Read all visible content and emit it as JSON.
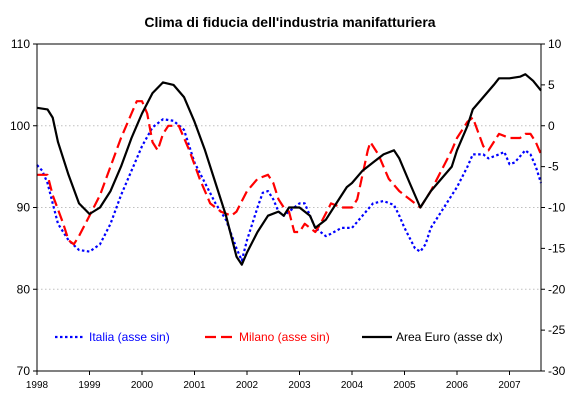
{
  "chart_data": {
    "type": "line",
    "title": "Clima di fiducia dell'industria manifatturiera",
    "x_ticks": [
      "1998",
      "1999",
      "2000",
      "2001",
      "2002",
      "2003",
      "2004",
      "2005",
      "2006",
      "2007"
    ],
    "x_range": [
      1998.0,
      2007.6
    ],
    "y_left": {
      "range": [
        70,
        110
      ],
      "ticks": [
        70,
        80,
        90,
        100,
        110
      ]
    },
    "y_right": {
      "range": [
        -30,
        10
      ],
      "ticks": [
        -30,
        -25,
        -20,
        -15,
        -10,
        -5,
        0,
        5,
        10
      ]
    },
    "grid": true,
    "legend_position": "bottom",
    "series": [
      {
        "name": "Italia (asse sin)",
        "axis": "left",
        "color": "#0000FF",
        "style": "dotted",
        "points": [
          [
            1998.0,
            95.2
          ],
          [
            1998.1,
            94.5
          ],
          [
            1998.2,
            93.0
          ],
          [
            1998.3,
            90.5
          ],
          [
            1998.4,
            88.0
          ],
          [
            1998.6,
            86.0
          ],
          [
            1998.8,
            84.8
          ],
          [
            1999.0,
            84.6
          ],
          [
            1999.2,
            85.5
          ],
          [
            1999.4,
            88.0
          ],
          [
            1999.6,
            91.5
          ],
          [
            1999.8,
            94.5
          ],
          [
            2000.0,
            97.5
          ],
          [
            2000.2,
            99.8
          ],
          [
            2000.4,
            100.8
          ],
          [
            2000.6,
            100.6
          ],
          [
            2000.8,
            99.5
          ],
          [
            2000.9,
            97.5
          ],
          [
            2001.0,
            95.5
          ],
          [
            2001.2,
            93.0
          ],
          [
            2001.4,
            90.5
          ],
          [
            2001.6,
            88.5
          ],
          [
            2001.8,
            85.0
          ],
          [
            2001.9,
            83.5
          ],
          [
            2002.0,
            86.0
          ],
          [
            2002.2,
            90.0
          ],
          [
            2002.3,
            91.8
          ],
          [
            2002.4,
            92.0
          ],
          [
            2002.5,
            91.0
          ],
          [
            2002.6,
            89.5
          ],
          [
            2002.7,
            89.0
          ],
          [
            2002.8,
            89.5
          ],
          [
            2003.0,
            90.5
          ],
          [
            2003.1,
            90.5
          ],
          [
            2003.2,
            89.0
          ],
          [
            2003.3,
            87.5
          ],
          [
            2003.5,
            86.5
          ],
          [
            2003.6,
            86.8
          ],
          [
            2003.8,
            87.5
          ],
          [
            2004.0,
            87.5
          ],
          [
            2004.2,
            89.0
          ],
          [
            2004.4,
            90.5
          ],
          [
            2004.6,
            90.8
          ],
          [
            2004.8,
            90.3
          ],
          [
            2004.9,
            89.0
          ],
          [
            2005.0,
            87.5
          ],
          [
            2005.2,
            85.0
          ],
          [
            2005.3,
            84.6
          ],
          [
            2005.4,
            85.5
          ],
          [
            2005.5,
            87.5
          ],
          [
            2005.7,
            89.5
          ],
          [
            2005.9,
            91.5
          ],
          [
            2006.0,
            92.5
          ],
          [
            2006.2,
            95.0
          ],
          [
            2006.3,
            96.5
          ],
          [
            2006.5,
            96.5
          ],
          [
            2006.6,
            96.0
          ],
          [
            2006.8,
            96.5
          ],
          [
            2006.9,
            96.8
          ],
          [
            2007.0,
            95.3
          ],
          [
            2007.1,
            95.5
          ],
          [
            2007.3,
            97.0
          ],
          [
            2007.4,
            96.5
          ],
          [
            2007.5,
            95.0
          ],
          [
            2007.6,
            93.0
          ]
        ]
      },
      {
        "name": "Milano (asse sin)",
        "axis": "left",
        "color": "#FF0000",
        "style": "dashed",
        "points": [
          [
            1998.0,
            94.0
          ],
          [
            1998.2,
            94.0
          ],
          [
            1998.3,
            91.5
          ],
          [
            1998.5,
            88.0
          ],
          [
            1998.6,
            86.0
          ],
          [
            1998.7,
            85.5
          ],
          [
            1998.8,
            86.5
          ],
          [
            1999.0,
            89.0
          ],
          [
            1999.2,
            91.5
          ],
          [
            1999.4,
            95.0
          ],
          [
            1999.6,
            98.5
          ],
          [
            1999.8,
            101.5
          ],
          [
            1999.9,
            103.0
          ],
          [
            2000.0,
            103.0
          ],
          [
            2000.1,
            101.5
          ],
          [
            2000.2,
            98.0
          ],
          [
            2000.3,
            97.0
          ],
          [
            2000.4,
            99.0
          ],
          [
            2000.5,
            100.0
          ],
          [
            2000.7,
            100.0
          ],
          [
            2000.9,
            97.0
          ],
          [
            2001.1,
            93.5
          ],
          [
            2001.3,
            90.5
          ],
          [
            2001.5,
            89.5
          ],
          [
            2001.7,
            89.0
          ],
          [
            2001.8,
            89.5
          ],
          [
            2002.0,
            92.0
          ],
          [
            2002.2,
            93.5
          ],
          [
            2002.4,
            94.0
          ],
          [
            2002.5,
            93.0
          ],
          [
            2002.6,
            91.0
          ],
          [
            2002.7,
            90.0
          ],
          [
            2002.8,
            89.5
          ],
          [
            2002.9,
            87.0
          ],
          [
            2003.0,
            87.0
          ],
          [
            2003.1,
            88.0
          ],
          [
            2003.3,
            87.0
          ],
          [
            2003.4,
            88.0
          ],
          [
            2003.6,
            90.5
          ],
          [
            2003.8,
            90.0
          ],
          [
            2004.0,
            90.0
          ],
          [
            2004.1,
            91.0
          ],
          [
            2004.3,
            97.0
          ],
          [
            2004.35,
            98.0
          ],
          [
            2004.5,
            96.5
          ],
          [
            2004.7,
            93.5
          ],
          [
            2004.9,
            92.0
          ],
          [
            2005.1,
            91.0
          ],
          [
            2005.3,
            90.0
          ],
          [
            2005.5,
            92.0
          ],
          [
            2005.7,
            94.5
          ],
          [
            2005.9,
            97.0
          ],
          [
            2006.0,
            98.5
          ],
          [
            2006.2,
            100.5
          ],
          [
            2006.3,
            101.0
          ],
          [
            2006.5,
            97.5
          ],
          [
            2006.6,
            97.0
          ],
          [
            2006.8,
            99.0
          ],
          [
            2007.0,
            98.5
          ],
          [
            2007.2,
            98.5
          ],
          [
            2007.3,
            99.0
          ],
          [
            2007.4,
            99.0
          ],
          [
            2007.5,
            98.0
          ],
          [
            2007.6,
            96.5
          ]
        ]
      },
      {
        "name": "Area Euro (asse dx)",
        "axis": "right",
        "color": "#000000",
        "style": "solid",
        "points": [
          [
            1998.0,
            2.2
          ],
          [
            1998.2,
            2.0
          ],
          [
            1998.3,
            1.0
          ],
          [
            1998.4,
            -2.0
          ],
          [
            1998.6,
            -6.0
          ],
          [
            1998.8,
            -9.5
          ],
          [
            1999.0,
            -10.8
          ],
          [
            1999.2,
            -10.0
          ],
          [
            1999.4,
            -8.0
          ],
          [
            1999.6,
            -5.0
          ],
          [
            1999.8,
            -1.5
          ],
          [
            2000.0,
            1.5
          ],
          [
            2000.2,
            4.0
          ],
          [
            2000.4,
            5.3
          ],
          [
            2000.6,
            5.0
          ],
          [
            2000.8,
            3.5
          ],
          [
            2001.0,
            0.5
          ],
          [
            2001.2,
            -3.0
          ],
          [
            2001.4,
            -7.0
          ],
          [
            2001.6,
            -11.0
          ],
          [
            2001.8,
            -16.0
          ],
          [
            2001.9,
            -17.0
          ],
          [
            2002.0,
            -15.5
          ],
          [
            2002.2,
            -13.0
          ],
          [
            2002.4,
            -11.0
          ],
          [
            2002.6,
            -10.5
          ],
          [
            2002.7,
            -11.0
          ],
          [
            2002.8,
            -10.0
          ],
          [
            2003.0,
            -10.0
          ],
          [
            2003.2,
            -11.0
          ],
          [
            2003.3,
            -12.5
          ],
          [
            2003.5,
            -11.5
          ],
          [
            2003.7,
            -9.5
          ],
          [
            2003.9,
            -7.5
          ],
          [
            2004.0,
            -7.0
          ],
          [
            2004.2,
            -5.5
          ],
          [
            2004.4,
            -4.5
          ],
          [
            2004.6,
            -3.5
          ],
          [
            2004.8,
            -3.0
          ],
          [
            2004.9,
            -4.0
          ],
          [
            2005.1,
            -7.0
          ],
          [
            2005.3,
            -10.0
          ],
          [
            2005.5,
            -8.0
          ],
          [
            2005.7,
            -6.5
          ],
          [
            2005.9,
            -5.0
          ],
          [
            2006.0,
            -3.0
          ],
          [
            2006.2,
            0.0
          ],
          [
            2006.3,
            2.0
          ],
          [
            2006.5,
            3.5
          ],
          [
            2006.7,
            5.0
          ],
          [
            2006.8,
            5.8
          ],
          [
            2007.0,
            5.8
          ],
          [
            2007.2,
            6.0
          ],
          [
            2007.3,
            6.3
          ],
          [
            2007.45,
            5.5
          ],
          [
            2007.6,
            4.3
          ]
        ]
      }
    ]
  }
}
